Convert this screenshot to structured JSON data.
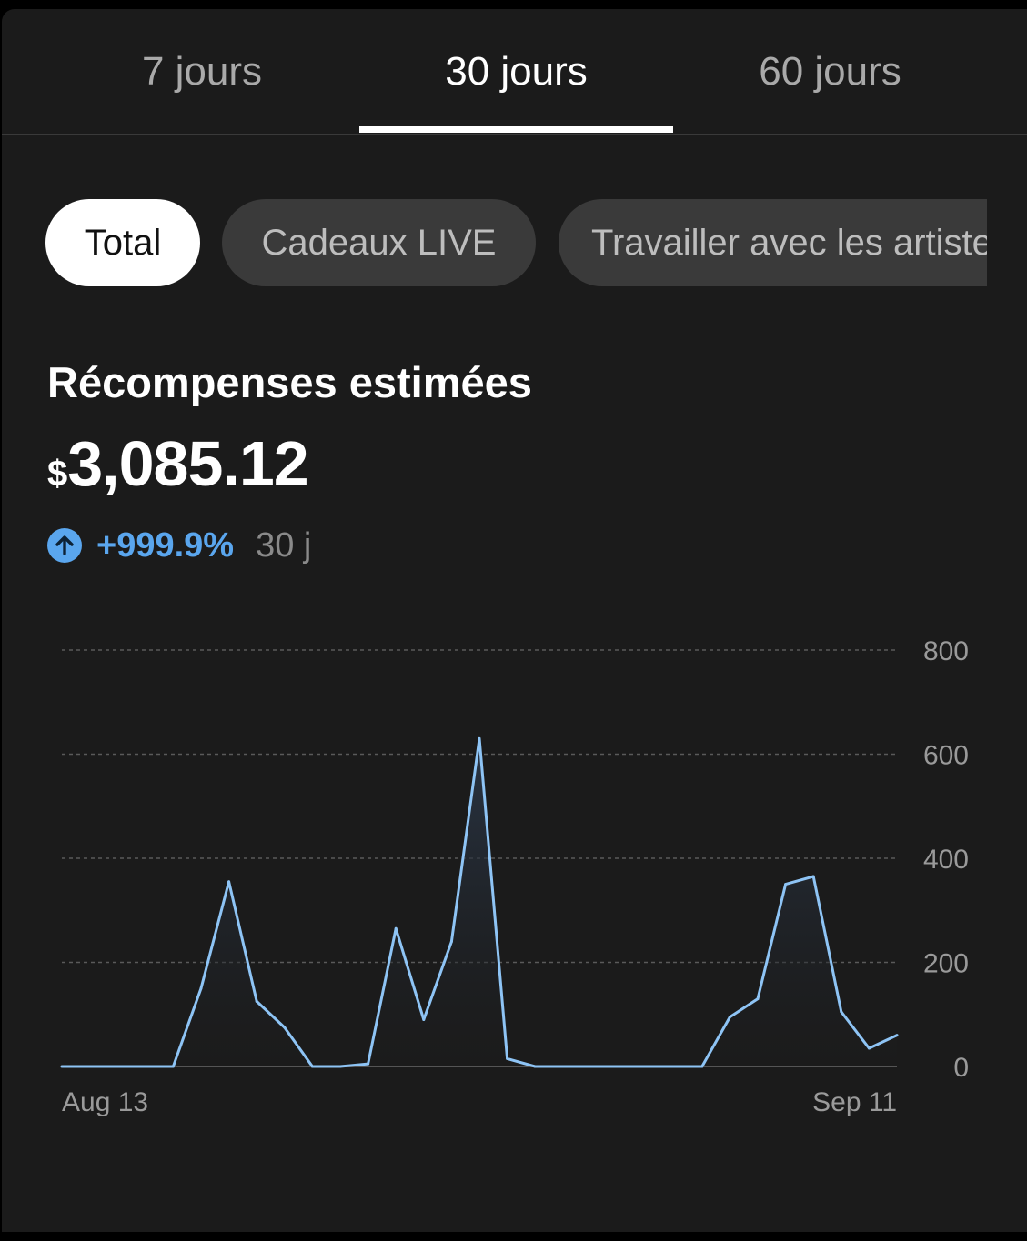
{
  "tabs": [
    {
      "label": "7 jours",
      "active": false
    },
    {
      "label": "30 jours",
      "active": true
    },
    {
      "label": "60 jours",
      "active": false
    }
  ],
  "filters": [
    {
      "label": "Total",
      "selected": true
    },
    {
      "label": "Cadeaux LIVE",
      "selected": false
    },
    {
      "label": "Travailler avec les artistes",
      "selected": false
    }
  ],
  "summary": {
    "title": "Récompenses estimées",
    "currency_symbol": "$",
    "amount": "3,085.12",
    "change": "+999.9%",
    "period": "30 j",
    "change_icon": "arrow-up-circle-icon"
  },
  "colors": {
    "accent": "#5aa6ee",
    "line": "#8ec4f5",
    "background": "#1b1b1b"
  },
  "chart_data": {
    "type": "area",
    "x_labels": {
      "start": "Aug 13",
      "end": "Sep 11"
    },
    "ylim": [
      0,
      800
    ],
    "y_ticks": [
      "800",
      "600",
      "400",
      "200",
      "0"
    ],
    "y_tick_values": [
      800,
      600,
      400,
      200,
      0
    ],
    "grid": true,
    "y_axis_position": "right",
    "values": [
      0,
      0,
      0,
      0,
      0,
      150,
      355,
      125,
      75,
      0,
      0,
      5,
      265,
      90,
      240,
      630,
      15,
      0,
      0,
      0,
      0,
      0,
      0,
      0,
      95,
      130,
      350,
      365,
      105,
      35,
      60
    ]
  }
}
